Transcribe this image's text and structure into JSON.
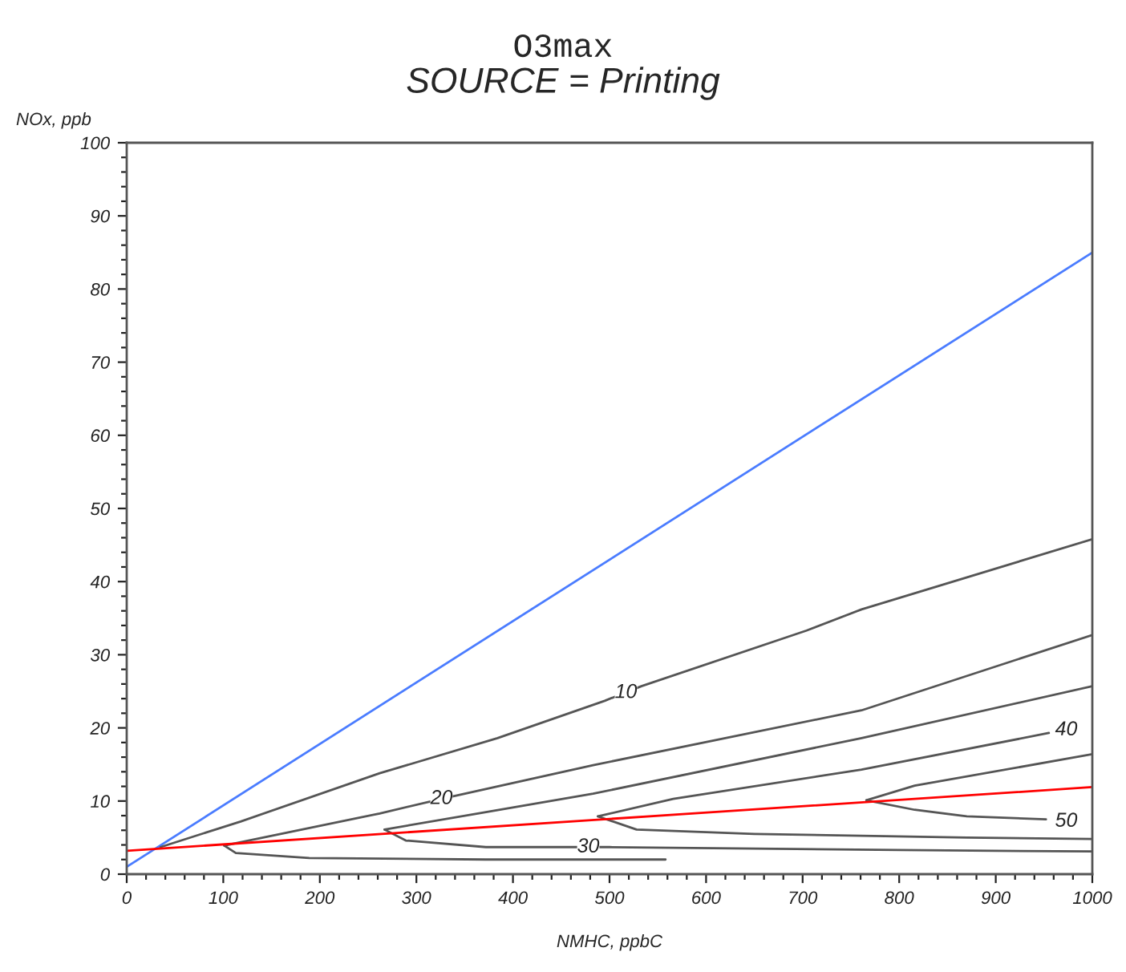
{
  "chart_data": {
    "type": "line",
    "title": "O3max",
    "subtitle": "SOURCE = Printing",
    "xlabel": "NMHC, ppbC",
    "ylabel": "NOx, ppb",
    "xlim": [
      0,
      1000
    ],
    "ylim": [
      0,
      100
    ],
    "xticks": [
      0,
      {
        "value": 20,
        "label": null
      },
      {
        "value": 40,
        "label": null
      },
      {
        "value": 60,
        "label": null
      },
      {
        "value": 80,
        "label": null
      },
      100,
      {
        "value": 120,
        "label": null
      },
      {
        "value": 140,
        "label": null
      },
      {
        "value": 160,
        "label": null
      },
      {
        "value": 180,
        "label": null
      },
      200,
      {
        "value": 220,
        "label": null
      },
      {
        "value": 240,
        "label": null
      },
      {
        "value": 260,
        "label": null
      },
      {
        "value": 280,
        "label": null
      },
      300,
      {
        "value": 320,
        "label": null
      },
      {
        "value": 340,
        "label": null
      },
      {
        "value": 360,
        "label": null
      },
      {
        "value": 380,
        "label": null
      },
      400,
      {
        "value": 420,
        "label": null
      },
      {
        "value": 440,
        "label": null
      },
      {
        "value": 460,
        "label": null
      },
      {
        "value": 480,
        "label": null
      },
      500,
      {
        "value": 520,
        "label": null
      },
      {
        "value": 540,
        "label": null
      },
      {
        "value": 560,
        "label": null
      },
      {
        "value": 580,
        "label": null
      },
      600,
      {
        "value": 620,
        "label": null
      },
      {
        "value": 640,
        "label": null
      },
      {
        "value": 660,
        "label": null
      },
      {
        "value": 680,
        "label": null
      },
      700,
      {
        "value": 720,
        "label": null
      },
      {
        "value": 740,
        "label": null
      },
      {
        "value": 760,
        "label": null
      },
      {
        "value": 780,
        "label": null
      },
      800,
      {
        "value": 820,
        "label": null
      },
      {
        "value": 840,
        "label": null
      },
      {
        "value": 860,
        "label": null
      },
      {
        "value": 880,
        "label": null
      },
      900,
      {
        "value": 920,
        "label": null
      },
      {
        "value": 940,
        "label": null
      },
      {
        "value": 960,
        "label": null
      },
      {
        "value": 980,
        "label": null
      },
      1000
    ],
    "yticks": [
      0,
      {
        "value": 2,
        "label": null
      },
      {
        "value": 4,
        "label": null
      },
      {
        "value": 6,
        "label": null
      },
      {
        "value": 8,
        "label": null
      },
      10,
      {
        "value": 12,
        "label": null
      },
      {
        "value": 14,
        "label": null
      },
      {
        "value": 16,
        "label": null
      },
      {
        "value": 18,
        "label": null
      },
      20,
      {
        "value": 22,
        "label": null
      },
      {
        "value": 24,
        "label": null
      },
      {
        "value": 26,
        "label": null
      },
      {
        "value": 28,
        "label": null
      },
      30,
      {
        "value": 32,
        "label": null
      },
      {
        "value": 34,
        "label": null
      },
      {
        "value": 36,
        "label": null
      },
      {
        "value": 38,
        "label": null
      },
      40,
      {
        "value": 42,
        "label": null
      },
      {
        "value": 44,
        "label": null
      },
      {
        "value": 46,
        "label": null
      },
      {
        "value": 48,
        "label": null
      },
      50,
      {
        "value": 52,
        "label": null
      },
      {
        "value": 54,
        "label": null
      },
      {
        "value": 56,
        "label": null
      },
      {
        "value": 58,
        "label": null
      },
      60,
      {
        "value": 62,
        "label": null
      },
      {
        "value": 64,
        "label": null
      },
      {
        "value": 66,
        "label": null
      },
      {
        "value": 68,
        "label": null
      },
      70,
      {
        "value": 72,
        "label": null
      },
      {
        "value": 74,
        "label": null
      },
      {
        "value": 76,
        "label": null
      },
      {
        "value": 78,
        "label": null
      },
      80,
      {
        "value": 82,
        "label": null
      },
      {
        "value": 84,
        "label": null
      },
      {
        "value": 86,
        "label": null
      },
      {
        "value": 88,
        "label": null
      },
      90,
      {
        "value": 92,
        "label": null
      },
      {
        "value": 94,
        "label": null
      },
      {
        "value": 96,
        "label": null
      },
      {
        "value": 98,
        "label": null
      },
      100
    ],
    "grid": false,
    "legend": false,
    "marker": "none",
    "line_style": "solid",
    "series": [
      {
        "color": "#4a7cff",
        "x": [
          0,
          1000
        ],
        "values": [
          1,
          85
        ]
      },
      {
        "color": "#555555",
        "x": [
          35,
          118,
          262,
          384,
          495,
          533,
          704,
          761,
          1000
        ],
        "values": [
          3.7,
          7.2,
          13.8,
          18.6,
          23.7,
          25.7,
          33.3,
          36.2,
          45.8
        ]
      },
      {
        "color": "#555555",
        "x": [
          101,
          262,
          326,
          483,
          761,
          1000
        ],
        "values": [
          3.9,
          8.3,
          10.3,
          14.9,
          22.4,
          32.7
        ]
      },
      {
        "color": "#555555",
        "x": [
          267,
          483,
          761,
          1000
        ],
        "values": [
          6.1,
          11,
          18.6,
          25.7
        ]
      },
      {
        "color": "#555555",
        "x": [
          488,
          566,
          761,
          955
        ],
        "values": [
          7.9,
          10.3,
          14.3,
          19.3
        ]
      },
      {
        "color": "#555555",
        "x": [
          766,
          816,
          1000
        ],
        "values": [
          10.1,
          12.1,
          16.4
        ]
      },
      {
        "color": "#555555",
        "x": [
          101,
          113,
          189,
          372,
          483,
          558
        ],
        "values": [
          3.9,
          2.9,
          2.2,
          2,
          2,
          2
        ]
      },
      {
        "color": "#555555",
        "x": [
          267,
          289,
          372,
          500,
          799,
          1000
        ],
        "values": [
          6.1,
          4.6,
          3.7,
          3.7,
          3.3,
          3.1
        ]
      },
      {
        "color": "#555555",
        "x": [
          488,
          528,
          650,
          870,
          1000
        ],
        "values": [
          7.9,
          6.1,
          5.5,
          5,
          4.8
        ]
      },
      {
        "color": "#555555",
        "x": [
          766,
          816,
          870,
          952
        ],
        "values": [
          10.1,
          8.8,
          7.9,
          7.5
        ]
      },
      {
        "color": "#ff0000",
        "x": [
          0,
          1000
        ],
        "values": [
          3.2,
          11.9
        ]
      }
    ],
    "annotations": [
      {
        "text": "10",
        "x": 517,
        "y": 24.8
      },
      {
        "text": "20",
        "x": 326,
        "y": 10.3
      },
      {
        "text": "30",
        "x": 478,
        "y": 3.7
      },
      {
        "text": "40",
        "x": 973,
        "y": 19.7
      },
      {
        "text": "50",
        "x": 973,
        "y": 7.2
      }
    ]
  }
}
